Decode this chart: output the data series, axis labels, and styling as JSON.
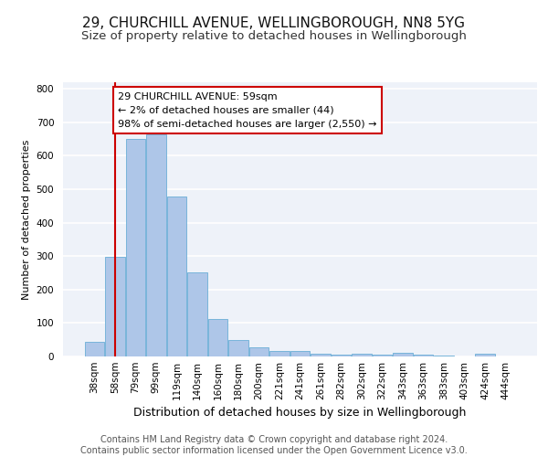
{
  "title1": "29, CHURCHILL AVENUE, WELLINGBOROUGH, NN8 5YG",
  "title2": "Size of property relative to detached houses in Wellingborough",
  "xlabel": "Distribution of detached houses by size in Wellingborough",
  "ylabel": "Number of detached properties",
  "categories": [
    "38sqm",
    "58sqm",
    "79sqm",
    "99sqm",
    "119sqm",
    "140sqm",
    "160sqm",
    "180sqm",
    "200sqm",
    "221sqm",
    "241sqm",
    "261sqm",
    "282sqm",
    "302sqm",
    "322sqm",
    "343sqm",
    "363sqm",
    "383sqm",
    "403sqm",
    "424sqm",
    "444sqm"
  ],
  "values": [
    44,
    297,
    651,
    665,
    477,
    252,
    113,
    48,
    28,
    17,
    17,
    7,
    5,
    7,
    5,
    10,
    5,
    2,
    0,
    8,
    0
  ],
  "bar_color": "#aec6e8",
  "bar_edge_color": "#6aaed6",
  "vline_x": 1,
  "vline_color": "#cc0000",
  "annotation_text": "29 CHURCHILL AVENUE: 59sqm\n← 2% of detached houses are smaller (44)\n98% of semi-detached houses are larger (2,550) →",
  "annotation_box_color": "#ffffff",
  "annotation_box_edge_color": "#cc0000",
  "ylim": [
    0,
    820
  ],
  "yticks": [
    0,
    100,
    200,
    300,
    400,
    500,
    600,
    700,
    800
  ],
  "footer_text": "Contains HM Land Registry data © Crown copyright and database right 2024.\nContains public sector information licensed under the Open Government Licence v3.0.",
  "bg_color": "#eef2f9",
  "grid_color": "#ffffff",
  "title1_fontsize": 11,
  "title2_fontsize": 9.5,
  "xlabel_fontsize": 9,
  "ylabel_fontsize": 8,
  "tick_fontsize": 7.5,
  "annotation_fontsize": 8,
  "footer_fontsize": 7
}
